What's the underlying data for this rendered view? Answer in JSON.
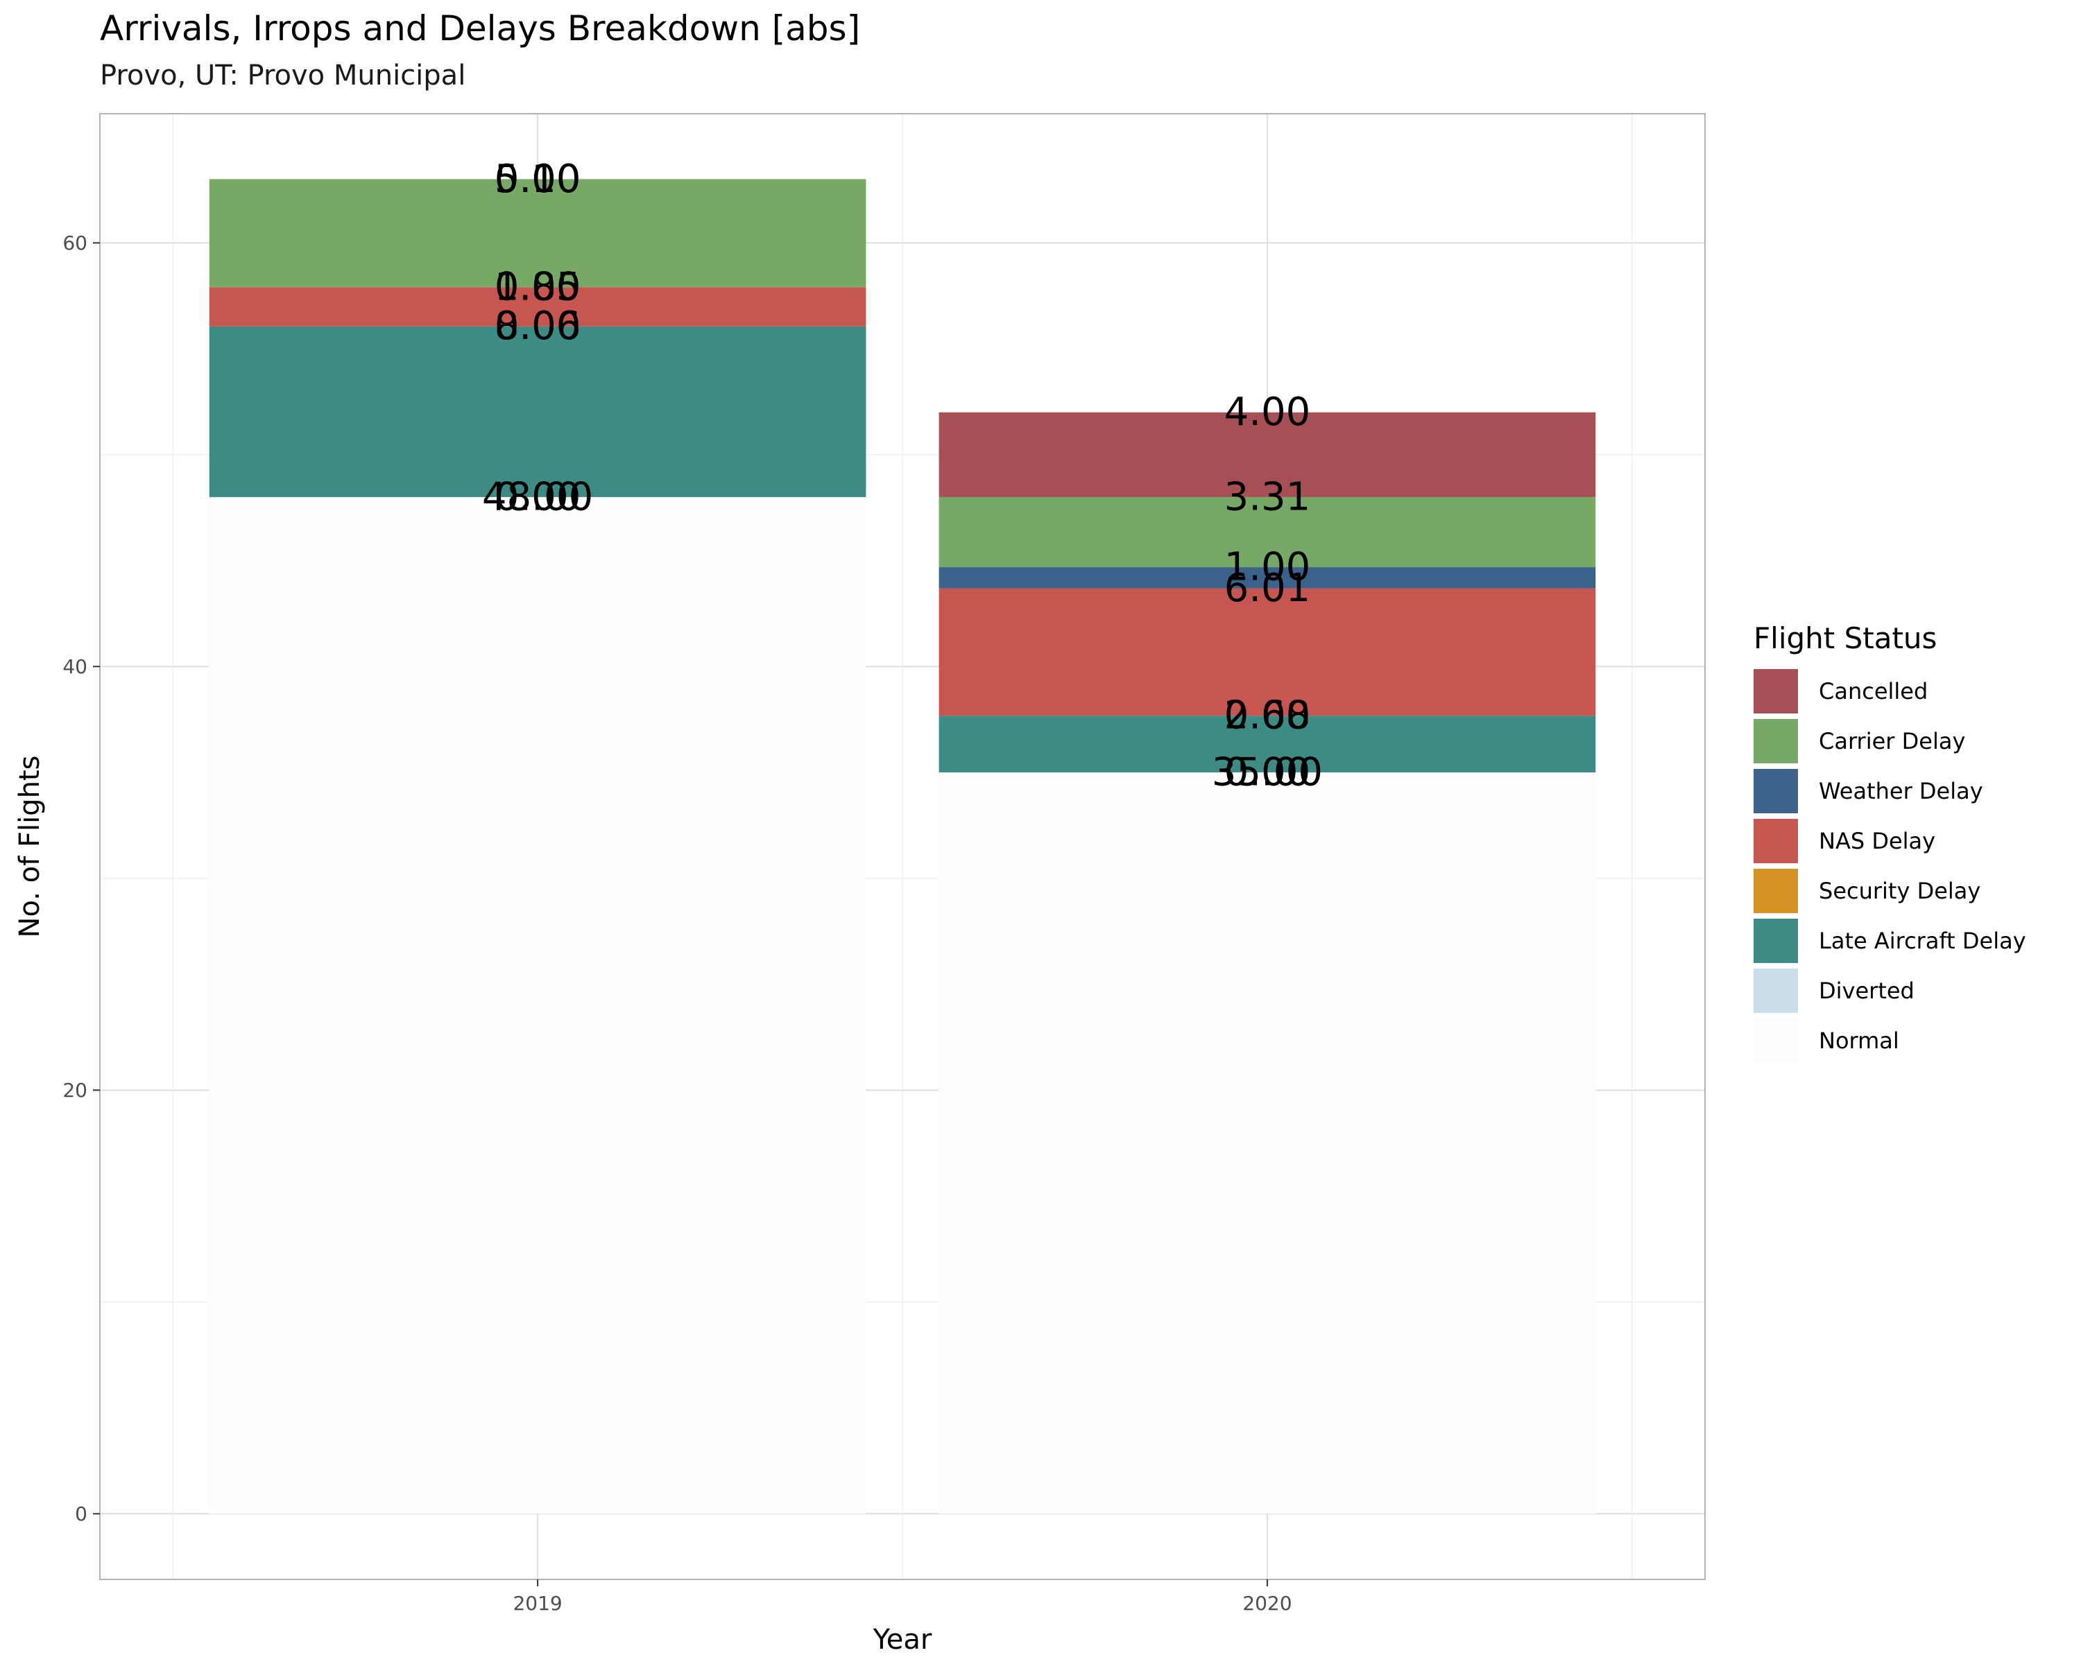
{
  "title": "Arrivals, Irrops and Delays Breakdown [abs]",
  "subtitle": "Provo, UT: Provo Municipal",
  "colors": {
    "Cancelled": "#a65055",
    "Carrier Delay": "#76a965",
    "Weather Delay": "#3a628b",
    "NAS Delay": "#c85650",
    "Security Delay": "#d49321",
    "Late Aircraft Delay": "#3c8c85",
    "Diverted": "#cadeec",
    "Normal": "#fffdfb"
  },
  "chart_data": {
    "type": "bar",
    "stacked": true,
    "xlabel": "Year",
    "ylabel": "No. of Flights",
    "categories": [
      "2019",
      "2020"
    ],
    "yticks": [
      0,
      20,
      40,
      60
    ],
    "ylim": [
      -3.1,
      66.1
    ],
    "grid": true,
    "legend": {
      "title": "Flight Status",
      "placement": "right"
    },
    "series": [
      {
        "name": "Cancelled",
        "values": [
          0.0,
          4.0
        ],
        "labels": [
          "0.00",
          "4.00"
        ]
      },
      {
        "name": "Carrier Delay",
        "values": [
          5.1,
          3.31
        ],
        "labels": [
          "5.10",
          "3.31"
        ]
      },
      {
        "name": "Weather Delay",
        "values": [
          0.0,
          1.0
        ],
        "labels": [
          "0.00",
          "1.00"
        ]
      },
      {
        "name": "NAS Delay",
        "values": [
          1.85,
          6.01
        ],
        "labels": [
          "1.85",
          "6.01"
        ]
      },
      {
        "name": "Security Delay",
        "values": [
          0.0,
          0.0
        ],
        "labels": [
          "0.00",
          "0.00"
        ]
      },
      {
        "name": "Late Aircraft Delay",
        "values": [
          8.06,
          2.68
        ],
        "labels": [
          "8.06",
          "2.68"
        ]
      },
      {
        "name": "Diverted",
        "values": [
          0.0,
          0.0
        ],
        "labels": [
          "0.00",
          "0.00"
        ]
      },
      {
        "name": "Normal",
        "values": [
          48.0,
          35.0
        ],
        "labels": [
          "48.00",
          "35.00"
        ]
      }
    ]
  }
}
